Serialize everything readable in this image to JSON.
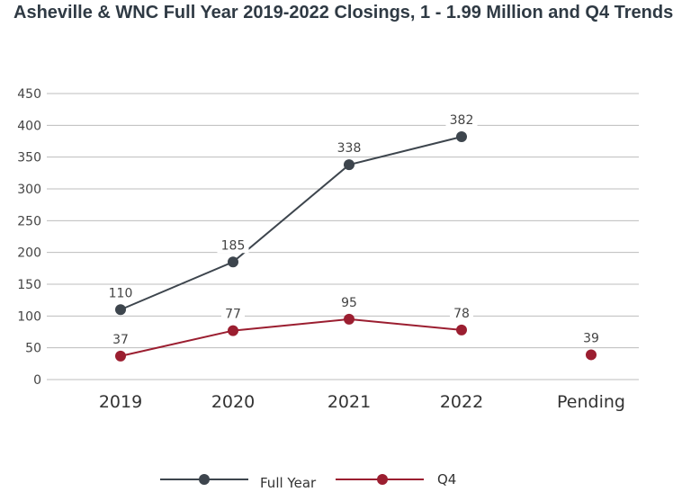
{
  "chart_data": {
    "type": "line",
    "title": "Asheville & WNC Full Year 2019-2022 Closings, 1 - 1.99 Million and Q4 Trends",
    "categories": [
      "2019",
      "2020",
      "2021",
      "2022",
      "Pending"
    ],
    "yticks": [
      "450",
      "400",
      "350",
      "300",
      "250",
      "200",
      "150",
      "100",
      "50",
      "0"
    ],
    "ylim": [
      0,
      450
    ],
    "grid": true,
    "legend_position": "bottom",
    "series": [
      {
        "name": "Full Year",
        "color": "#3d454d",
        "values": [
          110,
          185,
          338,
          382,
          null
        ],
        "labels": [
          "110",
          "185",
          "338",
          "382",
          ""
        ]
      },
      {
        "name": "Q4",
        "color": "#9b1e30",
        "values": [
          37,
          77,
          95,
          78,
          39
        ],
        "labels": [
          "37",
          "77",
          "95",
          "78",
          "39"
        ]
      }
    ]
  }
}
